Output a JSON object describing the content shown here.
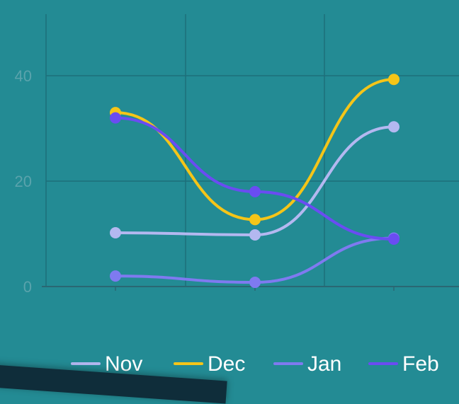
{
  "chart_data": {
    "type": "line",
    "categories": [
      "",
      "",
      ""
    ],
    "series": [
      {
        "name": "Nov",
        "values": [
          10.2,
          9.8,
          30.3
        ],
        "color": "#b4b8f0"
      },
      {
        "name": "Dec",
        "values": [
          33.0,
          12.7,
          39.3
        ],
        "color": "#f5c518"
      },
      {
        "name": "Jan",
        "values": [
          2.0,
          0.8,
          9.2
        ],
        "color": "#7f7af0"
      },
      {
        "name": "Feb",
        "values": [
          32.0,
          18.0,
          9.0
        ],
        "color": "#6a4cf2"
      }
    ],
    "title": "",
    "xlabel": "",
    "ylabel": "",
    "ylim": [
      0,
      50
    ],
    "yticks": [
      0,
      20,
      40
    ],
    "grid": true,
    "legend_position": "bottom-right",
    "smooth": true
  },
  "colors": {
    "background": "#238b94",
    "grid": "#1d6f7a",
    "axis": "#2a6773",
    "tick_label": "#5aa3ac",
    "legend_text": "#ffffff"
  }
}
